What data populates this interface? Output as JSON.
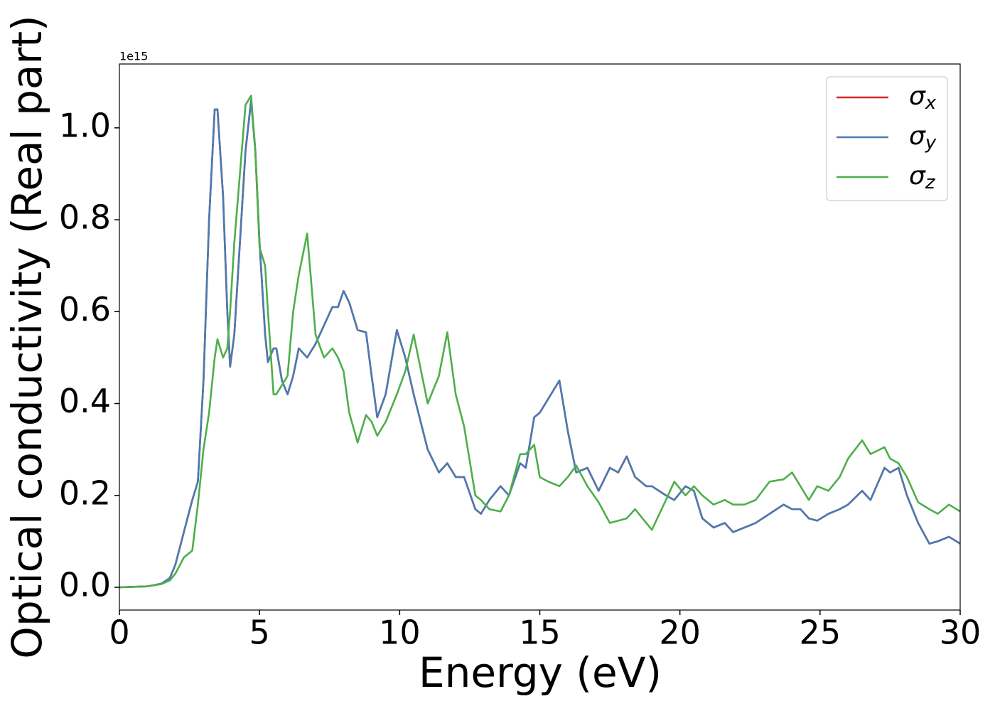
{
  "chart_data": {
    "type": "line",
    "xlabel": "Energy (eV)",
    "ylabel": "Optical conductivity (Real part)",
    "offset_text": "1e15",
    "xlim": [
      0,
      30
    ],
    "ylim": [
      -0.0495,
      1.139
    ],
    "xticks": [
      0,
      5,
      10,
      15,
      20,
      25,
      30
    ],
    "yticks": [
      {
        "value": 0,
        "label": "0.0"
      },
      0.2,
      0.4,
      0.6,
      0.8,
      {
        "value": 1,
        "label": "1.0"
      }
    ],
    "legend": "upper right",
    "x": [
      0,
      1,
      1.5,
      1.8,
      2,
      2.3,
      2.6,
      2.8,
      3,
      3.2,
      3.4,
      3.5,
      3.7,
      3.85,
      3.95,
      4.1,
      4.3,
      4.5,
      4.7,
      4.85,
      5,
      5.2,
      5.3,
      5.5,
      5.6,
      5.8,
      6,
      6.2,
      6.4,
      6.7,
      7,
      7.3,
      7.6,
      7.8,
      8,
      8.2,
      8.5,
      8.8,
      9,
      9.2,
      9.5,
      9.9,
      10.2,
      10.5,
      11,
      11.4,
      11.7,
      12,
      12.3,
      12.7,
      12.9,
      13.2,
      13.6,
      13.9,
      14.3,
      14.5,
      14.8,
      15,
      15.3,
      15.7,
      16,
      16.3,
      16.7,
      17.1,
      17.5,
      17.8,
      18.1,
      18.4,
      18.8,
      19,
      19.5,
      19.8,
      20.2,
      20.5,
      20.8,
      21.2,
      21.6,
      21.9,
      22.3,
      22.7,
      23.2,
      23.7,
      24,
      24.3,
      24.6,
      24.9,
      25.3,
      25.7,
      26,
      26.5,
      26.8,
      27.3,
      27.5,
      27.8,
      28.1,
      28.5,
      28.9,
      29.2,
      29.6,
      30
    ],
    "series": [
      {
        "name": "σx",
        "color": "#d62728",
        "values": [
          0,
          0.002,
          0.008,
          0.02,
          0.05,
          0.12,
          0.19,
          0.23,
          0.45,
          0.8,
          1.04,
          1.04,
          0.85,
          0.6,
          0.48,
          0.55,
          0.75,
          0.95,
          1.06,
          0.95,
          0.75,
          0.55,
          0.49,
          0.52,
          0.52,
          0.45,
          0.42,
          0.46,
          0.52,
          0.5,
          0.53,
          0.57,
          0.61,
          0.61,
          0.645,
          0.62,
          0.56,
          0.555,
          0.46,
          0.37,
          0.42,
          0.56,
          0.5,
          0.42,
          0.3,
          0.25,
          0.27,
          0.24,
          0.24,
          0.17,
          0.16,
          0.19,
          0.22,
          0.2,
          0.27,
          0.26,
          0.37,
          0.38,
          0.41,
          0.45,
          0.34,
          0.25,
          0.26,
          0.21,
          0.26,
          0.25,
          0.285,
          0.24,
          0.22,
          0.22,
          0.2,
          0.19,
          0.22,
          0.21,
          0.15,
          0.13,
          0.14,
          0.12,
          0.13,
          0.14,
          0.16,
          0.18,
          0.17,
          0.17,
          0.15,
          0.145,
          0.16,
          0.17,
          0.18,
          0.21,
          0.19,
          0.26,
          0.25,
          0.26,
          0.2,
          0.14,
          0.095,
          0.1,
          0.11,
          0.095
        ]
      },
      {
        "name": "σy",
        "color": "#4a7bb0",
        "values": [
          0,
          0.002,
          0.008,
          0.02,
          0.05,
          0.12,
          0.19,
          0.23,
          0.45,
          0.8,
          1.04,
          1.04,
          0.85,
          0.6,
          0.48,
          0.55,
          0.75,
          0.95,
          1.06,
          0.95,
          0.75,
          0.55,
          0.49,
          0.52,
          0.52,
          0.45,
          0.42,
          0.46,
          0.52,
          0.5,
          0.53,
          0.57,
          0.61,
          0.61,
          0.645,
          0.62,
          0.56,
          0.555,
          0.46,
          0.37,
          0.42,
          0.56,
          0.5,
          0.42,
          0.3,
          0.25,
          0.27,
          0.24,
          0.24,
          0.17,
          0.16,
          0.19,
          0.22,
          0.2,
          0.27,
          0.26,
          0.37,
          0.38,
          0.41,
          0.45,
          0.34,
          0.25,
          0.26,
          0.21,
          0.26,
          0.25,
          0.285,
          0.24,
          0.22,
          0.22,
          0.2,
          0.19,
          0.22,
          0.21,
          0.15,
          0.13,
          0.14,
          0.12,
          0.13,
          0.14,
          0.16,
          0.18,
          0.17,
          0.17,
          0.15,
          0.145,
          0.16,
          0.17,
          0.18,
          0.21,
          0.19,
          0.26,
          0.25,
          0.26,
          0.2,
          0.14,
          0.095,
          0.1,
          0.11,
          0.095
        ]
      },
      {
        "name": "σz",
        "color": "#4daf4a",
        "values": [
          0,
          0.002,
          0.007,
          0.015,
          0.03,
          0.065,
          0.08,
          0.18,
          0.3,
          0.38,
          0.5,
          0.54,
          0.5,
          0.52,
          0.6,
          0.75,
          0.9,
          1.05,
          1.07,
          0.95,
          0.74,
          0.7,
          0.6,
          0.42,
          0.42,
          0.44,
          0.46,
          0.6,
          0.68,
          0.77,
          0.55,
          0.5,
          0.52,
          0.5,
          0.47,
          0.38,
          0.315,
          0.375,
          0.36,
          0.33,
          0.36,
          0.42,
          0.47,
          0.55,
          0.4,
          0.46,
          0.555,
          0.42,
          0.35,
          0.2,
          0.19,
          0.17,
          0.165,
          0.2,
          0.29,
          0.29,
          0.31,
          0.24,
          0.23,
          0.22,
          0.24,
          0.265,
          0.22,
          0.185,
          0.14,
          0.145,
          0.15,
          0.17,
          0.14,
          0.125,
          0.19,
          0.23,
          0.2,
          0.22,
          0.2,
          0.18,
          0.19,
          0.18,
          0.18,
          0.19,
          0.23,
          0.235,
          0.25,
          0.22,
          0.19,
          0.22,
          0.21,
          0.24,
          0.28,
          0.32,
          0.29,
          0.305,
          0.28,
          0.27,
          0.24,
          0.185,
          0.17,
          0.16,
          0.18,
          0.165
        ]
      }
    ]
  }
}
